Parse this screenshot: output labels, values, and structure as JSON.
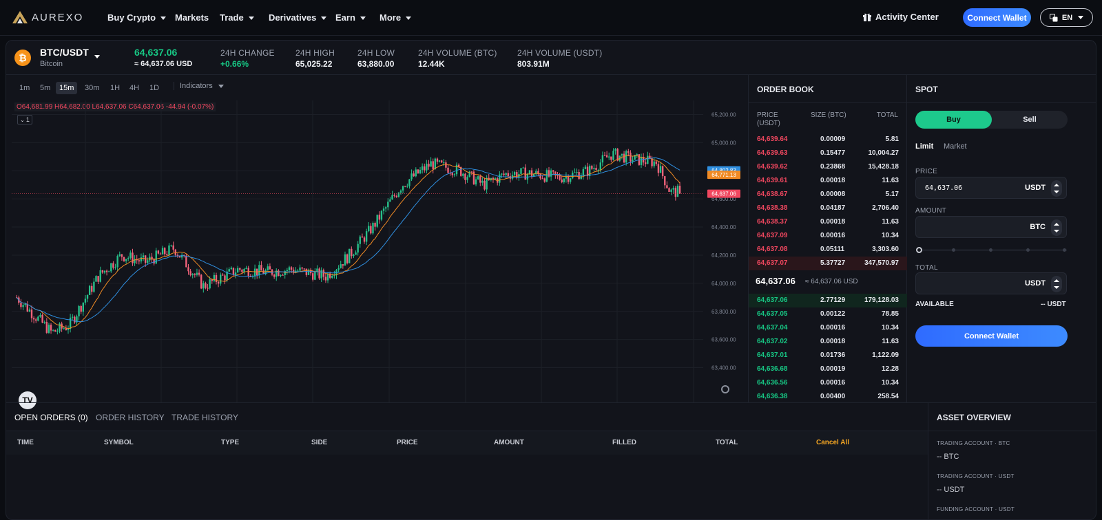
{
  "brand": {
    "name": "AUREXO"
  },
  "nav": {
    "items": [
      {
        "label": "Buy Crypto",
        "dropdown": true
      },
      {
        "label": "Markets",
        "dropdown": false
      },
      {
        "label": "Trade",
        "dropdown": true
      },
      {
        "label": "Derivatives",
        "dropdown": true
      },
      {
        "label": "Earn",
        "dropdown": true
      },
      {
        "label": "More",
        "dropdown": true
      }
    ],
    "activity_center": "Activity Center",
    "connect_wallet": "Connect Wallet",
    "language": "EN"
  },
  "ticker": {
    "pair": "BTC/USDT",
    "asset_name": "Bitcoin",
    "last_price": "64,637.06",
    "last_price_usd": "≈ 64,637.06 USD",
    "stats": [
      {
        "label": "24H CHANGE",
        "value": "+0.66%",
        "tone": "up"
      },
      {
        "label": "24H HIGH",
        "value": "65,025.22",
        "tone": "neutral"
      },
      {
        "label": "24H LOW",
        "value": "63,880.00",
        "tone": "neutral"
      },
      {
        "label": "24H VOLUME (BTC)",
        "value": "12.44K",
        "tone": "neutral"
      },
      {
        "label": "24H VOLUME (USDT)",
        "value": "803.91M",
        "tone": "neutral"
      }
    ]
  },
  "chart": {
    "timeframes": [
      "1m",
      "5m",
      "15m",
      "30m",
      "1H",
      "4H",
      "1D"
    ],
    "active_timeframe": "15m",
    "indicators_label": "Indicators",
    "ohlc": {
      "o": "O64,681.99",
      "h": "H64,682.00",
      "l": "L64,637.06",
      "c": "C64,637.06",
      "chg": "-44.94 (-0.07%)"
    },
    "legend_toggle": "1",
    "y_ticks": [
      "65,200.00",
      "65,000.00",
      "64,600.00",
      "64,400.00",
      "64,200.00",
      "64,000.00",
      "63,800.00",
      "63,600.00",
      "63,400.00"
    ],
    "x_ticks": [
      "12:00",
      "18:00",
      "5",
      "06:00",
      "12:00",
      "18:00",
      "6",
      "06:00",
      "12:00"
    ],
    "price_tags": [
      {
        "value": "64,802.83",
        "color": "#2f8fe0"
      },
      {
        "value": "64,771.13",
        "color": "#f08a24"
      },
      {
        "value": "64,637.06",
        "color": "#f0475f"
      }
    ],
    "up_color": "#26c08a",
    "down_color": "#f0627a"
  },
  "orderbook": {
    "title": "ORDER BOOK",
    "headers": {
      "price": "PRICE (USDT)",
      "size": "SIZE (BTC)",
      "total": "TOTAL"
    },
    "asks": [
      [
        "64,639.64",
        "0.00009",
        "5.81"
      ],
      [
        "64,639.63",
        "0.15477",
        "10,004.27"
      ],
      [
        "64,639.62",
        "0.23868",
        "15,428.18"
      ],
      [
        "64,639.61",
        "0.00018",
        "11.63"
      ],
      [
        "64,638.67",
        "0.00008",
        "5.17"
      ],
      [
        "64,638.38",
        "0.04187",
        "2,706.40"
      ],
      [
        "64,638.37",
        "0.00018",
        "11.63"
      ],
      [
        "64,637.09",
        "0.00016",
        "10.34"
      ],
      [
        "64,637.08",
        "0.05111",
        "3,303.60"
      ],
      [
        "64,637.07",
        "5.37727",
        "347,570.97"
      ]
    ],
    "mid_price": "64,637.06",
    "mid_usd": "≈ 64,637.06 USD",
    "bids": [
      [
        "64,637.06",
        "2.77129",
        "179,128.03"
      ],
      [
        "64,637.05",
        "0.00122",
        "78.85"
      ],
      [
        "64,637.04",
        "0.00016",
        "10.34"
      ],
      [
        "64,637.02",
        "0.00018",
        "11.63"
      ],
      [
        "64,637.01",
        "0.01736",
        "1,122.09"
      ],
      [
        "64,636.68",
        "0.00019",
        "12.28"
      ],
      [
        "64,636.56",
        "0.00016",
        "10.34"
      ],
      [
        "64,636.38",
        "0.00400",
        "258.54"
      ]
    ]
  },
  "spot": {
    "title": "SPOT",
    "buy": "Buy",
    "sell": "Sell",
    "order_types": [
      "Limit",
      "Market"
    ],
    "price_label": "PRICE",
    "price_value": "64,637.06",
    "price_unit": "USDT",
    "amount_label": "AMOUNT",
    "amount_unit": "BTC",
    "total_label": "TOTAL",
    "total_unit": "USDT",
    "available_label": "AVAILABLE",
    "available_value": "-- USDT",
    "connect_wallet": "Connect Wallet"
  },
  "orders": {
    "tabs": [
      "OPEN ORDERS (0)",
      "ORDER HISTORY",
      "TRADE HISTORY"
    ],
    "columns": [
      "TIME",
      "SYMBOL",
      "TYPE",
      "SIDE",
      "PRICE",
      "AMOUNT",
      "FILLED",
      "TOTAL"
    ],
    "cancel_all": "Cancel All"
  },
  "asset_overview": {
    "title": "ASSET OVERVIEW",
    "items": [
      {
        "label": "TRADING ACCOUNT · BTC",
        "value": "-- BTC"
      },
      {
        "label": "TRADING ACCOUNT · USDT",
        "value": "-- USDT"
      },
      {
        "label": "FUNDING ACCOUNT · USDT",
        "value": ""
      }
    ]
  }
}
